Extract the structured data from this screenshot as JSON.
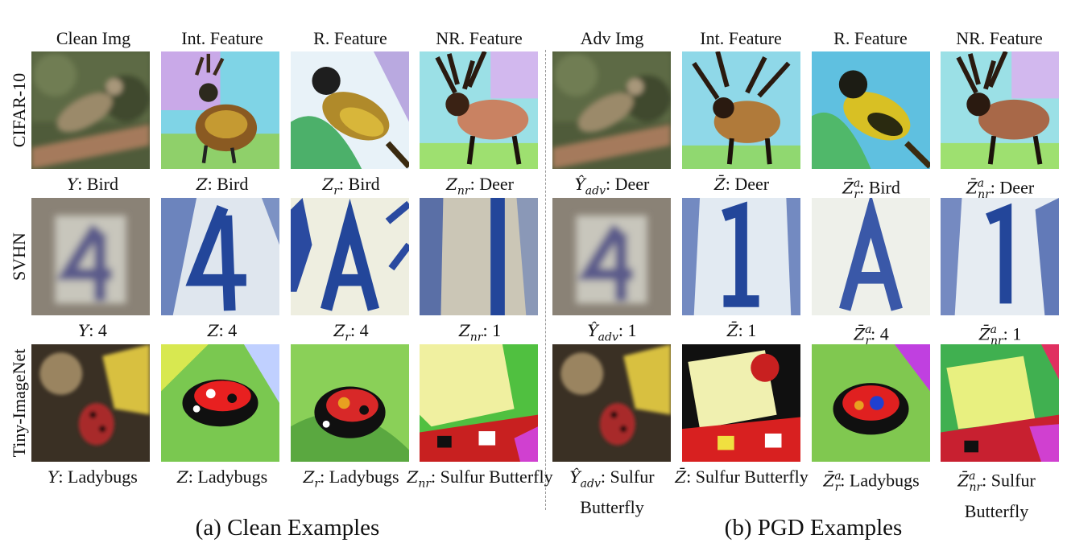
{
  "columns": {
    "clean_img": "Clean Img",
    "int_feature_a": "Int. Feature",
    "r_feature_a": "R. Feature",
    "nr_feature_a": "NR. Feature",
    "adv_img": "Adv Img",
    "int_feature_b": "Int. Feature",
    "r_feature_b": "R. Feature",
    "nr_feature_b": "NR. Feature"
  },
  "rows": {
    "cifar": "CIFAR-10",
    "svhn": "SVHN",
    "tiny": "Tiny-ImageNet"
  },
  "captions": {
    "cifar": [
      "Bird",
      "Bird",
      "Bird",
      "Deer",
      "Deer",
      "Deer",
      "Bird",
      "Deer"
    ],
    "svhn": [
      "4",
      "4",
      "4",
      "1",
      "1",
      "1",
      "4",
      "1"
    ],
    "tiny": [
      "Ladybugs",
      "Ladybugs",
      "Ladybugs",
      "Sulfur Butterfly",
      "Sulfur Butterfly",
      "Sulfur Butterfly",
      "Ladybugs",
      "Sulfur Butterfly"
    ]
  },
  "groups": {
    "a": "(a) Clean Examples",
    "b": "(b) PGD Examples"
  }
}
